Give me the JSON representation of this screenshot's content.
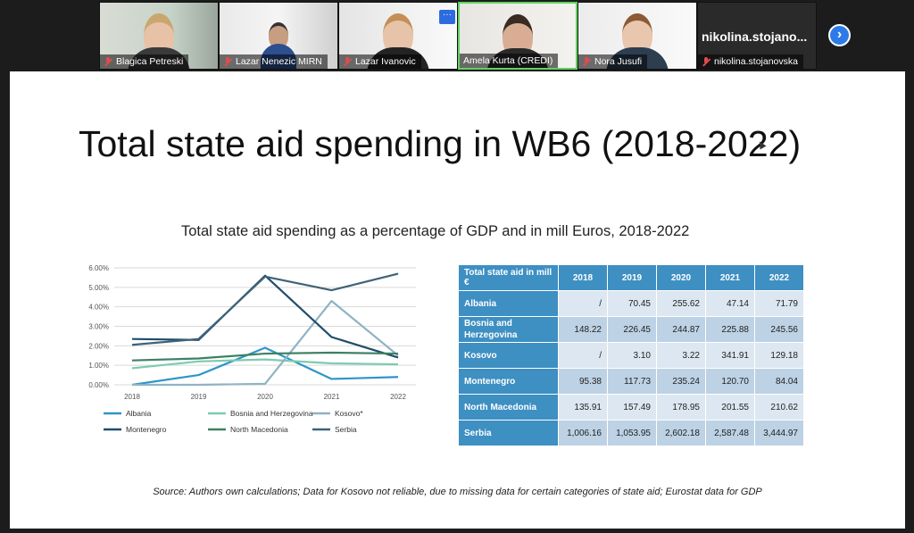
{
  "participants": [
    {
      "name": "Blagica Petreski",
      "muted": true
    },
    {
      "name": "Lazar Nenezic MIRN",
      "muted": true
    },
    {
      "name": "Lazar Ivanovic",
      "muted": true
    },
    {
      "name": "Amela Kurta (CREDI)",
      "muted": false,
      "active": true
    },
    {
      "name": "Nora Jusufi",
      "muted": true
    },
    {
      "name": "nikolina.stojanovska",
      "muted": true,
      "display_text": "nikolina.stojano..."
    }
  ],
  "more_options_label": "···",
  "next_page_label": "›",
  "slide": {
    "title": "Total state aid spending in WB6 (2018-2022)",
    "chart_title": "Total state aid spending as a percentage of GDP and in mill Euros, 2018-2022",
    "source": "Source: Authors own calculations; Data for Kosovo not reliable, due to missing data for certain categories of state aid; Eurostat data for GDP"
  },
  "chart_data": {
    "type": "line",
    "x": [
      "2018",
      "2019",
      "2020",
      "2021",
      "2022"
    ],
    "y_ticks": [
      "0.00%",
      "1.00%",
      "2.00%",
      "3.00%",
      "4.00%",
      "5.00%",
      "6.00%"
    ],
    "ylim": [
      0,
      6
    ],
    "grid": true,
    "legend_position": "bottom",
    "series": [
      {
        "name": "Albania",
        "color": "#2e95c8",
        "values": [
          0.0,
          0.5,
          1.9,
          0.3,
          0.4
        ]
      },
      {
        "name": "Bosnia and Herzegovina",
        "color": "#7ccbb0",
        "values": [
          0.85,
          1.2,
          1.3,
          1.1,
          1.05
        ]
      },
      {
        "name": "Kosovo*",
        "color": "#8fb3c3",
        "values": [
          0.0,
          0.0,
          0.05,
          4.3,
          1.5
        ]
      },
      {
        "name": "Montenegro",
        "color": "#1f4e6b",
        "values": [
          2.35,
          2.3,
          5.6,
          2.45,
          1.4
        ]
      },
      {
        "name": "North Macedonia",
        "color": "#3e8063",
        "values": [
          1.25,
          1.35,
          1.6,
          1.65,
          1.6
        ]
      },
      {
        "name": "Serbia",
        "color": "#3f6278",
        "values": [
          2.05,
          2.35,
          5.55,
          4.85,
          5.7
        ]
      }
    ]
  },
  "table": {
    "header": [
      "Total state aid in mill €",
      "2018",
      "2019",
      "2020",
      "2021",
      "2022"
    ],
    "rows": [
      [
        "Albania",
        "/",
        "70.45",
        "255.62",
        "47.14",
        "71.79"
      ],
      [
        "Bosnia and Herzegovina",
        "148.22",
        "226.45",
        "244.87",
        "225.88",
        "245.56"
      ],
      [
        "Kosovo",
        "/",
        "3.10",
        "3.22",
        "341.91",
        "129.18"
      ],
      [
        "Montenegro",
        "95.38",
        "117.73",
        "235.24",
        "120.70",
        "84.04"
      ],
      [
        "North Macedonia",
        "135.91",
        "157.49",
        "178.95",
        "201.55",
        "210.62"
      ],
      [
        "Serbia",
        "1,006.16",
        "1,053.95",
        "2,602.18",
        "2,587.48",
        "3,444.97"
      ]
    ]
  }
}
